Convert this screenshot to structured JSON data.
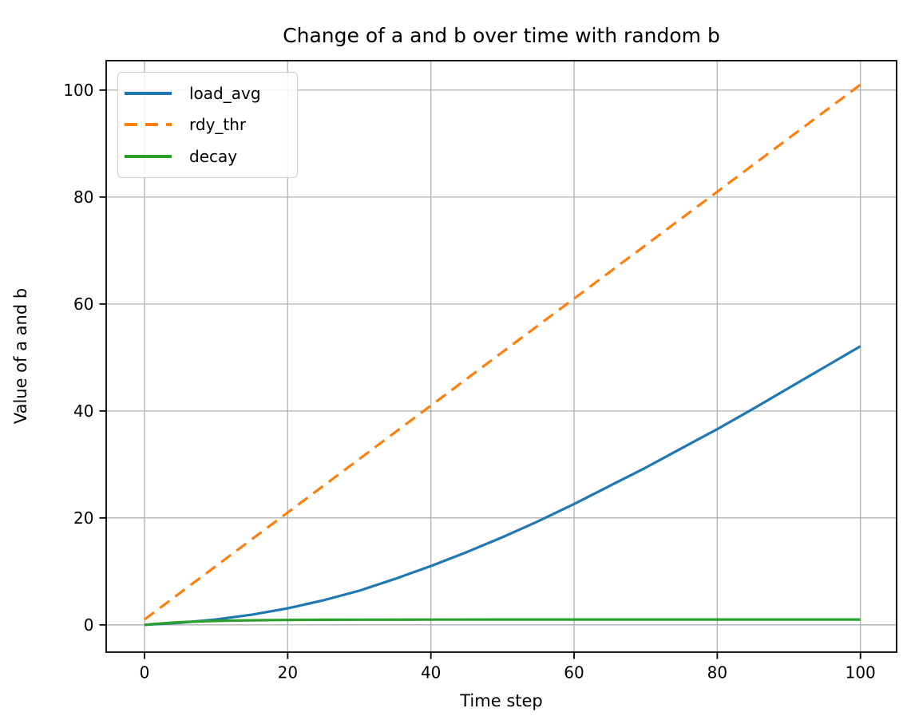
{
  "chart_data": {
    "type": "line",
    "title": "Change of a and b over time with random b",
    "xlabel": "Time step",
    "ylabel": "Value of a and b",
    "xlim": [
      -5.35,
      105.05
    ],
    "ylim": [
      -5.1,
      105.5
    ],
    "xticks": [
      0,
      20,
      40,
      60,
      80,
      100
    ],
    "yticks": [
      0,
      20,
      40,
      60,
      80,
      100
    ],
    "grid": true,
    "legend_position": "upper left",
    "colors": {
      "grid": "#b0b0b0",
      "spine": "#000000",
      "text": "#000000",
      "legend_border": "#cccccc",
      "background": "#ffffff"
    },
    "series": [
      {
        "name": "load_avg",
        "color": "#1f77b4",
        "style": "solid",
        "points": [
          [
            0,
            0
          ],
          [
            5,
            0.4
          ],
          [
            10,
            1.0
          ],
          [
            15,
            1.9
          ],
          [
            20,
            3.1
          ],
          [
            25,
            4.6
          ],
          [
            30,
            6.4
          ],
          [
            35,
            8.6
          ],
          [
            40,
            11.0
          ],
          [
            45,
            13.6
          ],
          [
            50,
            16.4
          ],
          [
            55,
            19.4
          ],
          [
            60,
            22.6
          ],
          [
            65,
            26.0
          ],
          [
            70,
            29.4
          ],
          [
            75,
            33.0
          ],
          [
            80,
            36.6
          ],
          [
            85,
            40.4
          ],
          [
            90,
            44.3
          ],
          [
            95,
            48.2
          ],
          [
            100,
            52.1
          ]
        ]
      },
      {
        "name": "rdy_thr",
        "color": "#ff7f0e",
        "style": "dashed",
        "points": [
          [
            0,
            1
          ],
          [
            10,
            11
          ],
          [
            20,
            21
          ],
          [
            30,
            31
          ],
          [
            40,
            41
          ],
          [
            50,
            51
          ],
          [
            60,
            61
          ],
          [
            70,
            71
          ],
          [
            80,
            81
          ],
          [
            90,
            91
          ],
          [
            100,
            101
          ]
        ]
      },
      {
        "name": "decay",
        "color": "#2ca02c",
        "style": "solid",
        "points": [
          [
            0,
            0
          ],
          [
            1,
            0.12
          ],
          [
            2,
            0.23
          ],
          [
            3,
            0.33
          ],
          [
            4,
            0.42
          ],
          [
            5,
            0.49
          ],
          [
            6,
            0.56
          ],
          [
            8,
            0.66
          ],
          [
            10,
            0.74
          ],
          [
            12,
            0.8
          ],
          [
            15,
            0.86
          ],
          [
            18,
            0.9
          ],
          [
            22,
            0.94
          ],
          [
            26,
            0.96
          ],
          [
            30,
            0.97
          ],
          [
            40,
            0.99
          ],
          [
            50,
            1.0
          ],
          [
            60,
            1.0
          ],
          [
            70,
            1.0
          ],
          [
            80,
            1.0
          ],
          [
            90,
            1.0
          ],
          [
            100,
            1.0
          ]
        ]
      }
    ]
  }
}
